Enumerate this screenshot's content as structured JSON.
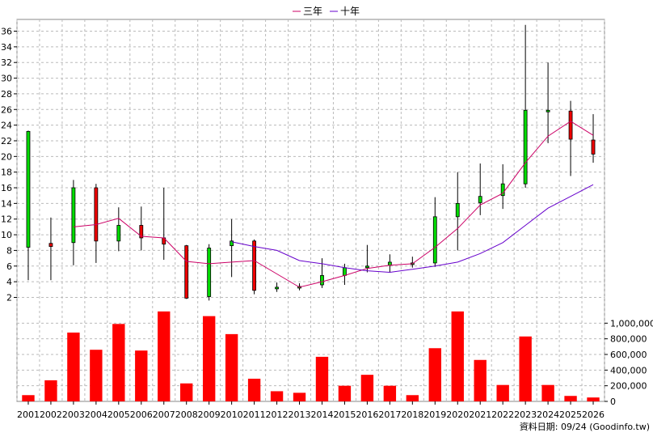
{
  "chart_data": {
    "type": "candlestick-with-volume",
    "legend": [
      {
        "name": "三年",
        "color": "#cc0066"
      },
      {
        "name": "十年",
        "color": "#6600cc"
      }
    ],
    "price_axis": {
      "ylim": [
        0.5,
        37.5
      ],
      "ticks": [
        2,
        4,
        6,
        8,
        10,
        12,
        14,
        16,
        18,
        20,
        22,
        24,
        26,
        28,
        30,
        32,
        34,
        36
      ]
    },
    "volume_axis": {
      "ylim": [
        0,
        1200000
      ],
      "ticks": [
        0,
        200000,
        400000,
        600000,
        800000,
        1000000
      ],
      "tick_labels": [
        "0",
        "200,000",
        "400,000",
        "600,000",
        "800,000",
        "1,000,000"
      ]
    },
    "categories": [
      "2001",
      "2002",
      "2003",
      "2004",
      "2005",
      "2006",
      "2007",
      "2008",
      "2009",
      "2010",
      "2011",
      "2012",
      "2013",
      "2014",
      "2015",
      "2016",
      "2017",
      "2018",
      "2019",
      "2020",
      "2021",
      "2022",
      "2023",
      "2024",
      "2025",
      "2026"
    ],
    "ohlc": [
      {
        "o": 8.4,
        "h": 23.3,
        "l": 4.2,
        "c": 23.2
      },
      {
        "o": 8.9,
        "h": 12.2,
        "l": 4.2,
        "c": 8.5
      },
      {
        "o": 9.0,
        "h": 17.0,
        "l": 6.1,
        "c": 16.0
      },
      {
        "o": 16.0,
        "h": 16.5,
        "l": 6.4,
        "c": 9.2
      },
      {
        "o": 9.2,
        "h": 13.5,
        "l": 7.9,
        "c": 11.2
      },
      {
        "o": 11.2,
        "h": 13.6,
        "l": 8.0,
        "c": 9.6
      },
      {
        "o": 9.6,
        "h": 16.0,
        "l": 6.8,
        "c": 8.8
      },
      {
        "o": 8.6,
        "h": 8.7,
        "l": 1.8,
        "c": 1.9
      },
      {
        "o": 2.1,
        "h": 8.8,
        "l": 1.6,
        "c": 8.3
      },
      {
        "o": 8.6,
        "h": 12.0,
        "l": 4.6,
        "c": 9.2
      },
      {
        "o": 9.2,
        "h": 9.4,
        "l": 2.4,
        "c": 2.9
      },
      {
        "o": 3.1,
        "h": 3.9,
        "l": 2.7,
        "c": 3.3
      },
      {
        "o": 3.2,
        "h": 3.8,
        "l": 2.9,
        "c": 3.4
      },
      {
        "o": 3.6,
        "h": 7.0,
        "l": 3.2,
        "c": 4.8
      },
      {
        "o": 4.8,
        "h": 6.3,
        "l": 3.6,
        "c": 5.8
      },
      {
        "o": 5.8,
        "h": 8.7,
        "l": 5.2,
        "c": 6.0
      },
      {
        "o": 6.1,
        "h": 7.5,
        "l": 5.2,
        "c": 6.5
      },
      {
        "o": 6.2,
        "h": 7.2,
        "l": 5.8,
        "c": 6.4
      },
      {
        "o": 6.4,
        "h": 14.8,
        "l": 5.9,
        "c": 12.3
      },
      {
        "o": 12.3,
        "h": 18.0,
        "l": 8.0,
        "c": 14.0
      },
      {
        "o": 14.1,
        "h": 19.1,
        "l": 12.5,
        "c": 14.9
      },
      {
        "o": 15.0,
        "h": 19.0,
        "l": 13.3,
        "c": 16.5
      },
      {
        "o": 16.5,
        "h": 36.8,
        "l": 16.0,
        "c": 25.9
      },
      {
        "o": 25.7,
        "h": 32.0,
        "l": 21.7,
        "c": 25.9
      },
      {
        "o": 25.8,
        "h": 27.1,
        "l": 17.5,
        "c": 22.2
      },
      {
        "o": 22.1,
        "h": 25.4,
        "l": 19.2,
        "c": 20.3
      }
    ],
    "ma3": [
      null,
      null,
      11.0,
      11.3,
      12.1,
      9.8,
      9.6,
      6.6,
      6.3,
      6.5,
      6.7,
      5.0,
      3.3,
      4.0,
      4.8,
      5.7,
      6.1,
      6.3,
      8.4,
      10.8,
      13.8,
      15.3,
      19.2,
      22.6,
      24.5,
      22.7
    ],
    "ma10": [
      null,
      null,
      null,
      null,
      null,
      null,
      null,
      null,
      null,
      9.1,
      8.5,
      8.0,
      6.7,
      6.3,
      5.8,
      5.4,
      5.2,
      5.6,
      6.0,
      6.5,
      7.6,
      9.0,
      11.2,
      13.4,
      14.9,
      16.4
    ],
    "volume": [
      80000,
      270000,
      880000,
      660000,
      990000,
      650000,
      1150000,
      230000,
      1090000,
      860000,
      290000,
      130000,
      110000,
      570000,
      200000,
      340000,
      200000,
      80000,
      680000,
      1150000,
      530000,
      210000,
      830000,
      210000,
      70000,
      50000
    ],
    "footer": "資料日期: 09/24  (Goodinfo.tw)"
  }
}
